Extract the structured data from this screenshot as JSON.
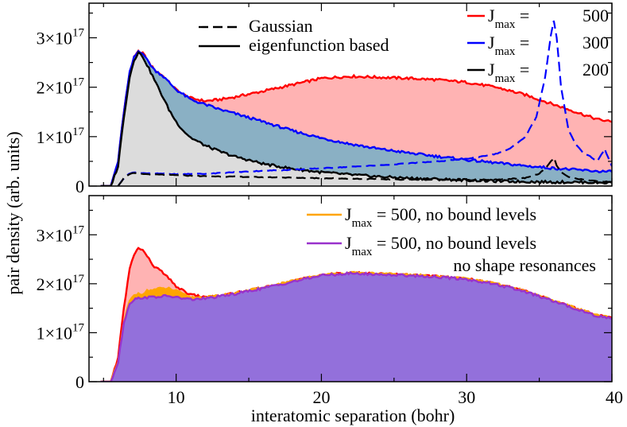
{
  "chart_data": {
    "type": "area",
    "xlabel": "interatomic separation (bohr)",
    "ylabel": "pair density (arb. units)",
    "xlim": [
      4,
      40
    ],
    "x_ticks": [
      10,
      20,
      30,
      40
    ],
    "x_tick_labels": [
      "10",
      "20",
      "30",
      "40"
    ],
    "y_tick_labels": [
      {
        "value": 0,
        "base": "0",
        "exp": ""
      },
      {
        "value": 1e+17,
        "base": "1×10",
        "exp": "17"
      },
      {
        "value": 2e+17,
        "base": "2×10",
        "exp": "17"
      },
      {
        "value": 3e+17,
        "base": "3×10",
        "exp": "17"
      }
    ],
    "panels": [
      {
        "name": "top",
        "ylim": [
          0,
          3.6e+17
        ],
        "legend_left": [
          {
            "label": "Gaussian",
            "style": "dashed",
            "color": "#000000"
          },
          {
            "label": "eigenfunction based",
            "style": "solid",
            "color": "#000000"
          }
        ],
        "legend_right": [
          {
            "sym": "J",
            "sub": "max",
            "value": "500",
            "color": "#ff0000"
          },
          {
            "sym": "J",
            "sub": "max",
            "value": "300",
            "color": "#0000ff"
          },
          {
            "sym": "J",
            "sub": "max",
            "value": "200",
            "color": "#000000"
          }
        ],
        "series": [
          {
            "name": "eigenfunction Jmax=500",
            "color": "#ff0000",
            "fill": "#ffb3b3",
            "x": [
              4.8,
              5.5,
              6.0,
              6.4,
              6.8,
              7.1,
              7.4,
              7.7,
              8.0,
              8.5,
              9.0,
              9.5,
              10.0,
              10.5,
              11.0,
              12,
              13,
              14,
              16,
              18,
              20,
              22,
              24,
              26,
              28,
              30,
              32,
              34,
              36,
              38,
              39,
              40
            ],
            "y": [
              0,
              0,
              0.5,
              1.5,
              2.3,
              2.6,
              2.72,
              2.7,
              2.55,
              2.35,
              2.25,
              2.1,
              1.95,
              1.85,
              1.78,
              1.72,
              1.75,
              1.8,
              1.92,
              2.05,
              2.18,
              2.22,
              2.2,
              2.18,
              2.15,
              2.1,
              2.0,
              1.85,
              1.65,
              1.45,
              1.35,
              1.3
            ]
          },
          {
            "name": "eigenfunction Jmax=300",
            "color": "#0000ff",
            "fill": "#8ab0c4",
            "x": [
              4.8,
              5.5,
              6.0,
              6.4,
              6.8,
              7.1,
              7.4,
              7.7,
              8.0,
              8.5,
              9.0,
              9.5,
              10.0,
              10.5,
              11.0,
              12,
              13,
              14,
              16,
              18,
              20,
              22,
              24,
              26,
              28,
              30,
              32,
              34,
              36,
              38,
              39,
              40
            ],
            "y": [
              0,
              0,
              0.5,
              1.5,
              2.3,
              2.6,
              2.73,
              2.7,
              2.55,
              2.35,
              2.25,
              2.1,
              1.95,
              1.85,
              1.75,
              1.65,
              1.55,
              1.47,
              1.3,
              1.12,
              0.97,
              0.85,
              0.75,
              0.67,
              0.6,
              0.53,
              0.47,
              0.41,
              0.36,
              0.32,
              0.3,
              0.29
            ]
          },
          {
            "name": "eigenfunction Jmax=200",
            "color": "#000000",
            "fill": "#dcdcdc",
            "x": [
              4.8,
              5.5,
              6.0,
              6.4,
              6.8,
              7.1,
              7.4,
              7.7,
              8.0,
              8.5,
              9.0,
              9.5,
              10.0,
              10.5,
              11.0,
              12,
              13,
              14,
              16,
              18,
              20,
              22,
              24,
              26,
              28,
              30,
              32,
              34,
              36,
              38,
              39,
              40
            ],
            "y": [
              0,
              0,
              0.4,
              1.4,
              2.2,
              2.55,
              2.7,
              2.62,
              2.45,
              2.15,
              1.85,
              1.55,
              1.3,
              1.12,
              0.98,
              0.82,
              0.7,
              0.6,
              0.45,
              0.35,
              0.28,
              0.23,
              0.19,
              0.16,
              0.14,
              0.12,
              0.1,
              0.09,
              0.08,
              0.08,
              0.07,
              0.07
            ]
          },
          {
            "name": "Gaussian Jmax=300",
            "color": "#0000ff",
            "style": "dashed",
            "x": [
              6.0,
              6.5,
              7.0,
              8,
              10,
              12,
              14,
              16,
              18,
              20,
              22,
              24,
              26,
              28,
              30,
              32,
              33,
              34,
              34.8,
              35.4,
              35.8,
              36.0,
              36.2,
              36.5,
              37,
              37.5,
              38,
              38.5,
              39,
              39.5,
              40
            ],
            "y": [
              0,
              0.2,
              0.28,
              0.26,
              0.24,
              0.25,
              0.28,
              0.31,
              0.33,
              0.36,
              0.39,
              0.42,
              0.46,
              0.5,
              0.55,
              0.65,
              0.76,
              0.98,
              1.4,
              2.2,
              3.05,
              3.35,
              3.0,
              2.0,
              1.15,
              0.85,
              0.68,
              0.6,
              0.5,
              0.75,
              0.4
            ]
          },
          {
            "name": "Gaussian Jmax=200",
            "color": "#000000",
            "style": "dashed",
            "x": [
              6.0,
              6.5,
              7.0,
              8,
              10,
              12,
              14,
              16,
              18,
              20,
              22,
              24,
              26,
              28,
              30,
              32,
              34,
              35,
              35.5,
              35.8,
              36.0,
              36.2,
              36.5,
              37,
              38,
              39,
              40
            ],
            "y": [
              0,
              0.2,
              0.26,
              0.24,
              0.22,
              0.2,
              0.19,
              0.18,
              0.17,
              0.16,
              0.15,
              0.14,
              0.13,
              0.13,
              0.12,
              0.13,
              0.16,
              0.25,
              0.38,
              0.5,
              0.57,
              0.42,
              0.28,
              0.18,
              0.13,
              0.1,
              0.08
            ]
          }
        ]
      },
      {
        "name": "bottom",
        "ylim": [
          0,
          3.6e+17
        ],
        "legend": [
          {
            "sym": "J",
            "sub": "max",
            "text": " = 500, no bound levels",
            "color": "#ffa500"
          },
          {
            "sym": "J",
            "sub": "max",
            "text": " = 500, no bound levels",
            "color": "#9932cc",
            "text2": "no shape resonances"
          }
        ],
        "series": [
          {
            "name": "Jmax=500",
            "color": "#ff0000",
            "fill": "#ffb3b3",
            "x": [
              4.8,
              5.5,
              6.0,
              6.4,
              6.8,
              7.1,
              7.4,
              7.7,
              8.0,
              8.5,
              9.0,
              9.5,
              10.0,
              10.5,
              11.0,
              12,
              13,
              14,
              16,
              18,
              20,
              22,
              24,
              26,
              28,
              30,
              32,
              34,
              36,
              38,
              39,
              40
            ],
            "y": [
              0,
              0,
              0.5,
              1.5,
              2.3,
              2.6,
              2.72,
              2.7,
              2.55,
              2.35,
              2.25,
              2.1,
              1.95,
              1.85,
              1.78,
              1.72,
              1.75,
              1.8,
              1.92,
              2.05,
              2.18,
              2.22,
              2.2,
              2.18,
              2.15,
              2.1,
              2.0,
              1.85,
              1.65,
              1.45,
              1.35,
              1.3
            ]
          },
          {
            "name": "Jmax=500, no bound levels",
            "color": "#ffa500",
            "fill": "#ffa500",
            "x": [
              4.8,
              5.5,
              6.0,
              6.4,
              6.8,
              7.1,
              7.4,
              7.7,
              8.0,
              8.5,
              9.0,
              9.5,
              10.0,
              10.5,
              11.0,
              12,
              13,
              14,
              16,
              18,
              20,
              22,
              24,
              26,
              28,
              30,
              32,
              34,
              36,
              38,
              39,
              40
            ],
            "y": [
              0,
              0,
              0.4,
              1.2,
              1.65,
              1.75,
              1.8,
              1.8,
              1.85,
              1.88,
              1.9,
              1.9,
              1.85,
              1.78,
              1.72,
              1.72,
              1.75,
              1.8,
              1.92,
              2.05,
              2.18,
              2.22,
              2.2,
              2.18,
              2.15,
              2.1,
              2.0,
              1.85,
              1.65,
              1.45,
              1.35,
              1.3
            ]
          },
          {
            "name": "Jmax=500, no bound levels, no shape resonances",
            "color": "#9932cc",
            "fill": "#9370db",
            "x": [
              4.8,
              5.5,
              6.0,
              6.4,
              6.8,
              7.1,
              7.4,
              7.7,
              8.0,
              8.5,
              9.0,
              9.5,
              10.0,
              10.5,
              11.0,
              12,
              13,
              14,
              16,
              18,
              20,
              22,
              24,
              26,
              28,
              30,
              32,
              34,
              36,
              38,
              39,
              40
            ],
            "y": [
              0,
              0,
              0.4,
              1.2,
              1.6,
              1.68,
              1.7,
              1.72,
              1.72,
              1.73,
              1.74,
              1.75,
              1.72,
              1.7,
              1.68,
              1.7,
              1.74,
              1.79,
              1.91,
              2.04,
              2.17,
              2.21,
              2.19,
              2.17,
              2.14,
              2.09,
              1.99,
              1.84,
              1.64,
              1.44,
              1.34,
              1.29
            ]
          }
        ]
      }
    ]
  }
}
